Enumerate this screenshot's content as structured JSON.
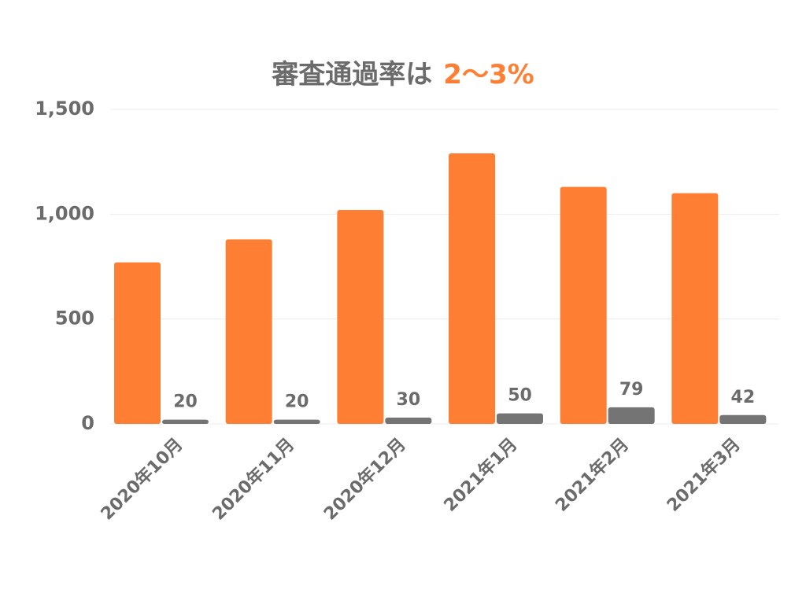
{
  "chart_data": {
    "type": "bar",
    "title": "審査通過率は",
    "title_highlight": "2〜3%",
    "title_highlight_color": "#fe7f33",
    "categories": [
      "2020年10月",
      "2020年11月",
      "2020年12月",
      "2021年1月",
      "2021年2月",
      "2021年3月"
    ],
    "series": [
      {
        "color": "#fe7f33",
        "values": [
          770,
          880,
          1020,
          1290,
          1130,
          1100
        ]
      },
      {
        "color": "#747474",
        "values": [
          20,
          20,
          30,
          50,
          79,
          42
        ],
        "show_labels": true
      }
    ],
    "ylim": [
      0,
      1500
    ],
    "yticks": [
      0,
      500,
      {
        "value": 1000,
        "label": "1,000"
      },
      {
        "value": 1500,
        "label": "1,500"
      }
    ],
    "grid": true
  }
}
